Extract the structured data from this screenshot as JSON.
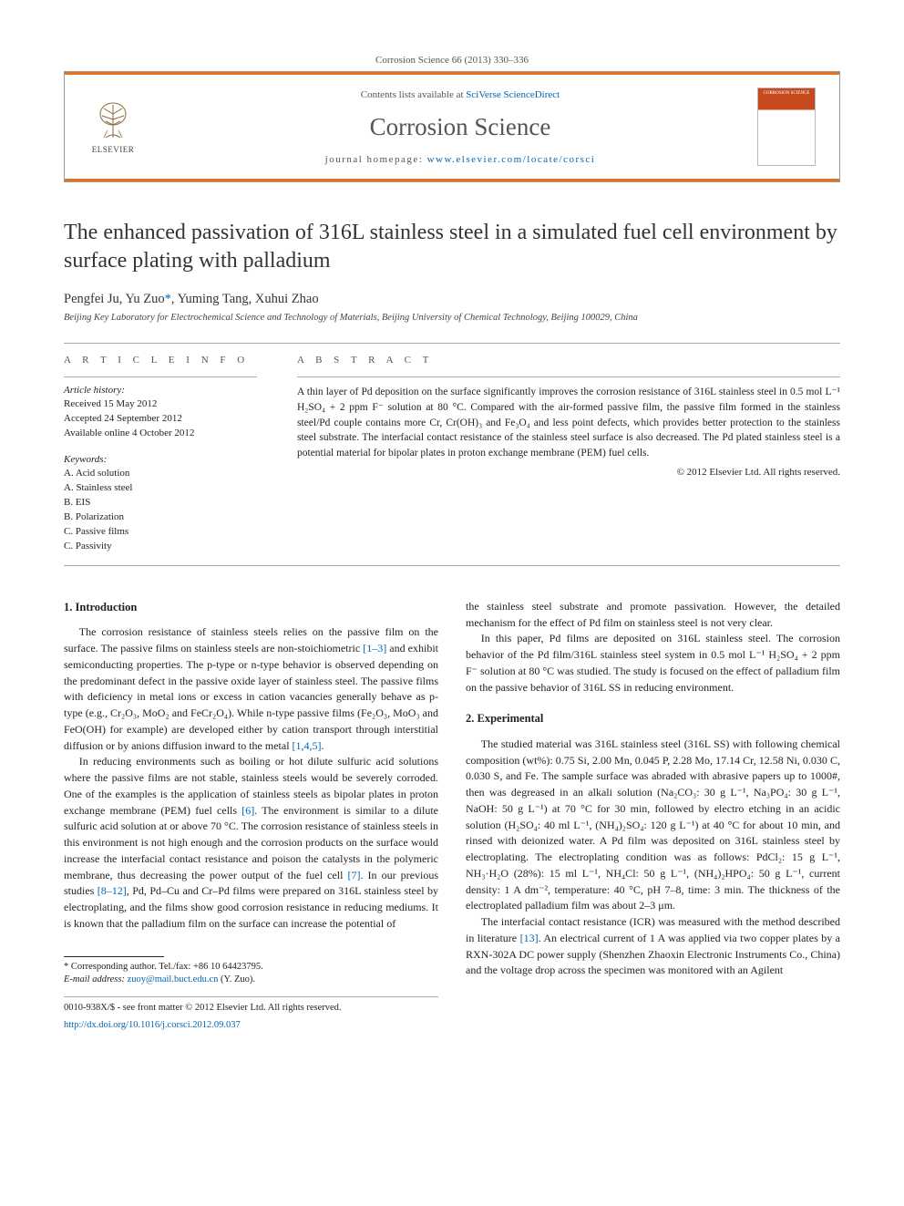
{
  "citation": "Corrosion Science 66 (2013) 330–336",
  "header": {
    "contents_prefix": "Contents lists available at ",
    "contents_link": "SciVerse ScienceDirect",
    "journal": "Corrosion Science",
    "homepage_prefix": "journal homepage: ",
    "homepage_url": "www.elsevier.com/locate/corsci",
    "publisher": "ELSEVIER",
    "cover_label": "CORROSION SCIENCE"
  },
  "title": "The enhanced passivation of 316L stainless steel in a simulated fuel cell environment by surface plating with palladium",
  "authors_html": "Pengfei Ju, Yu Zuo<a href='#'>*</a>, Yuming Tang, Xuhui Zhao",
  "affiliation": "Beijing Key Laboratory for Electrochemical Science and Technology of Materials, Beijing University of Chemical Technology, Beijing 100029, China",
  "article_info_heading": "A R T I C L E   I N F O",
  "abstract_heading": "A B S T R A C T",
  "history_label": "Article history:",
  "history": [
    "Received 15 May 2012",
    "Accepted 24 September 2012",
    "Available online 4 October 2012"
  ],
  "keywords_label": "Keywords:",
  "keywords": [
    "A. Acid solution",
    "A. Stainless steel",
    "B. EIS",
    "B. Polarization",
    "C. Passive films",
    "C. Passivity"
  ],
  "abstract": "A thin layer of Pd deposition on the surface significantly improves the corrosion resistance of 316L stainless steel in 0.5 mol L⁻¹ H₂SO₄ + 2 ppm F⁻ solution at 80 °C. Compared with the air-formed passive film, the passive film formed in the stainless steel/Pd couple contains more Cr, Cr(OH)₃ and Fe₃O₄ and less point defects, which provides better protection to the stainless steel substrate. The interfacial contact resistance of the stainless steel surface is also decreased. The Pd plated stainless steel is a potential material for bipolar plates in proton exchange membrane (PEM) fuel cells.",
  "copyright": "© 2012 Elsevier Ltd. All rights reserved.",
  "sections": {
    "intro_heading": "1. Introduction",
    "intro_p1_a": "The corrosion resistance of stainless steels relies on the passive film on the surface. The passive films on stainless steels are non-stoichiometric ",
    "intro_ref1": "[1–3]",
    "intro_p1_b": " and exhibit semiconducting properties. The p-type or n-type behavior is observed depending on the predominant defect in the passive oxide layer of stainless steel. The passive films with deficiency in metal ions or excess in cation vacancies generally behave as p-type (e.g., Cr₂O₃, MoO₂ and FeCr₂O₄). While n-type passive films (Fe₂O₃, MoO₃ and FeO(OH) for example) are developed either by cation transport through interstitial diffusion or by anions diffusion inward to the metal ",
    "intro_ref2": "[1,4,5]",
    "intro_p1_c": ".",
    "intro_p2_a": "In reducing environments such as boiling or hot dilute sulfuric acid solutions where the passive films are not stable, stainless steels would be severely corroded. One of the examples is the application of stainless steels as bipolar plates in proton exchange membrane (PEM) fuel cells ",
    "intro_ref3": "[6]",
    "intro_p2_b": ". The environment is similar to a dilute sulfuric acid solution at or above 70 °C. The corrosion resistance of stainless steels in this environment is not high enough and the corrosion products on the surface would increase the interfacial contact resistance and poison the catalysts in the polymeric membrane, thus decreasing the power output of the fuel cell ",
    "intro_ref4": "[7]",
    "intro_p2_c": ". In our previous studies ",
    "intro_ref5": "[8–12]",
    "intro_p2_d": ", Pd, Pd–Cu and Cr–Pd films were prepared on 316L stainless steel by electroplating, and the films show good corrosion resistance in reducing mediums. It is known that the palladium film on the surface can increase the potential of ",
    "intro_p3": "the stainless steel substrate and promote passivation. However, the detailed mechanism for the effect of Pd film on stainless steel is not very clear.",
    "intro_p4": "In this paper, Pd films are deposited on 316L stainless steel. The corrosion behavior of the Pd film/316L stainless steel system in 0.5 mol L⁻¹ H₂SO₄ + 2 ppm F⁻ solution at 80 °C was studied. The study is focused on the effect of palladium film on the passive behavior of 316L SS in reducing environment.",
    "exp_heading": "2. Experimental",
    "exp_p1": "The studied material was 316L stainless steel (316L SS) with following chemical composition (wt%): 0.75 Si, 2.00 Mn, 0.045 P, 2.28 Mo, 17.14 Cr, 12.58 Ni, 0.030 C, 0.030 S, and Fe. The sample surface was abraded with abrasive papers up to 1000#, then was degreased in an alkali solution (Na₂CO₃: 30 g L⁻¹, Na₃PO₄: 30 g L⁻¹, NaOH: 50 g L⁻¹) at 70 °C for 30 min, followed by electro etching in an acidic solution (H₂SO₄: 40 ml L⁻¹, (NH₄)₂SO₄: 120 g L⁻¹) at 40 °C for about 10 min, and rinsed with deionized water. A Pd film was deposited on 316L stainless steel by electroplating. The electroplating condition was as follows: PdCl₂: 15 g L⁻¹, NH₃·H₂O (28%): 15 ml L⁻¹, NH₄Cl: 50 g L⁻¹, (NH₄)₂HPO₄: 50 g L⁻¹, current density: 1 A dm⁻², temperature: 40 °C, pH 7–8, time: 3 min. The thickness of the electroplated palladium film was about 2–3 μm.",
    "exp_p2_a": "The interfacial contact resistance (ICR) was measured with the method described in literature ",
    "exp_ref1": "[13]",
    "exp_p2_b": ". An electrical current of 1 A was applied via two copper plates by a RXN-302A DC power supply (Shenzhen Zhaoxin Electronic Instruments Co., China) and the voltage drop across the specimen was monitored with an Agilent"
  },
  "corr": {
    "star": "*",
    "label": " Corresponding author. Tel./fax: +86 10 64423795.",
    "email_label": "E-mail address: ",
    "email": "zuoy@mail.buct.edu.cn",
    "email_suffix": " (Y. Zuo)."
  },
  "footer": {
    "issn_line": "0010-938X/$ - see front matter © 2012 Elsevier Ltd. All rights reserved.",
    "doi_url": "http://dx.doi.org/10.1016/j.corsci.2012.09.037"
  },
  "colors": {
    "orange": "#e8711a",
    "link": "#0066b3",
    "rule": "#aaaaaa",
    "text": "#222222",
    "muted": "#555555"
  }
}
